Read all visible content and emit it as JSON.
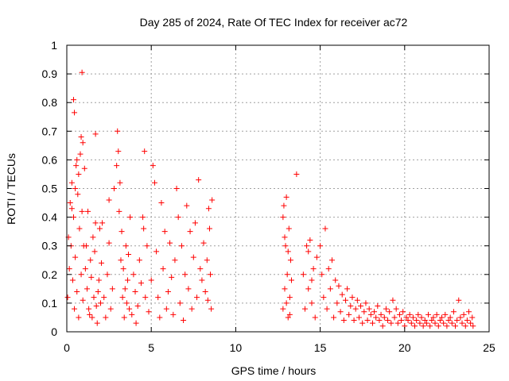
{
  "chart_data": {
    "type": "scatter",
    "title": "Day 285 of 2024, Rate Of TEC Index for receiver ac72",
    "xlabel": "GPS time / hours",
    "ylabel": "ROTI / TECUs",
    "xlim": [
      0,
      25
    ],
    "ylim": [
      0,
      1
    ],
    "xticks": [
      "0",
      "5",
      "10",
      "15",
      "20",
      "25"
    ],
    "yticks": [
      "0",
      "0.1",
      "0.2",
      "0.3",
      "0.4",
      "0.5",
      "0.6",
      "0.7",
      "0.8",
      "0.9",
      "1"
    ],
    "grid": true,
    "marker": "plus",
    "color": "#ff0000",
    "points": [
      [
        0.05,
        0.12
      ],
      [
        0.1,
        0.33
      ],
      [
        0.15,
        0.22
      ],
      [
        0.2,
        0.45
      ],
      [
        0.25,
        0.3
      ],
      [
        0.3,
        0.52
      ],
      [
        0.35,
        0.18
      ],
      [
        0.4,
        0.4
      ],
      [
        0.45,
        0.08
      ],
      [
        0.5,
        0.26
      ],
      [
        0.55,
        0.58
      ],
      [
        0.6,
        0.14
      ],
      [
        0.65,
        0.48
      ],
      [
        0.7,
        0.05
      ],
      [
        0.75,
        0.36
      ],
      [
        0.8,
        0.62
      ],
      [
        0.85,
        0.2
      ],
      [
        0.9,
        0.42
      ],
      [
        0.95,
        0.11
      ],
      [
        1.0,
        0.3
      ],
      [
        0.4,
        0.81
      ],
      [
        0.45,
        0.765
      ],
      [
        0.9,
        0.905
      ],
      [
        0.85,
        0.68
      ],
      [
        0.95,
        0.66
      ],
      [
        0.6,
        0.6
      ],
      [
        0.7,
        0.55
      ],
      [
        0.5,
        0.5
      ],
      [
        1.05,
        0.57
      ],
      [
        0.3,
        0.43
      ],
      [
        1.1,
        0.22
      ],
      [
        1.2,
        0.15
      ],
      [
        1.3,
        0.08
      ],
      [
        1.4,
        0.25
      ],
      [
        1.5,
        0.05
      ],
      [
        1.6,
        0.12
      ],
      [
        1.7,
        0.38
      ],
      [
        1.8,
        0.03
      ],
      [
        1.9,
        0.18
      ],
      [
        2.0,
        0.1
      ],
      [
        1.15,
        0.3
      ],
      [
        1.25,
        0.42
      ],
      [
        1.35,
        0.06
      ],
      [
        1.45,
        0.19
      ],
      [
        1.55,
        0.33
      ],
      [
        1.65,
        0.28
      ],
      [
        1.75,
        0.09
      ],
      [
        1.85,
        0.14
      ],
      [
        1.95,
        0.36
      ],
      [
        2.05,
        0.24
      ],
      [
        1.7,
        0.69
      ],
      [
        2.1,
        0.38
      ],
      [
        2.2,
        0.12
      ],
      [
        2.3,
        0.05
      ],
      [
        2.4,
        0.2
      ],
      [
        2.5,
        0.31
      ],
      [
        2.6,
        0.08
      ],
      [
        2.5,
        0.46
      ],
      [
        2.8,
        0.5
      ],
      [
        2.7,
        0.15
      ],
      [
        3.0,
        0.7
      ],
      [
        3.05,
        0.63
      ],
      [
        2.95,
        0.58
      ],
      [
        3.1,
        0.42
      ],
      [
        3.2,
        0.25
      ],
      [
        3.3,
        0.12
      ],
      [
        3.4,
        0.05
      ],
      [
        3.5,
        0.3
      ],
      [
        3.6,
        0.18
      ],
      [
        3.7,
        0.08
      ],
      [
        3.15,
        0.52
      ],
      [
        3.25,
        0.35
      ],
      [
        3.35,
        0.22
      ],
      [
        3.45,
        0.15
      ],
      [
        3.55,
        0.1
      ],
      [
        3.65,
        0.27
      ],
      [
        3.75,
        0.4
      ],
      [
        3.85,
        0.06
      ],
      [
        3.95,
        0.2
      ],
      [
        4.05,
        0.14
      ],
      [
        4.1,
        0.03
      ],
      [
        4.2,
        0.09
      ],
      [
        4.3,
        0.25
      ],
      [
        4.4,
        0.17
      ],
      [
        4.5,
        0.4
      ],
      [
        4.6,
        0.63
      ],
      [
        4.55,
        0.36
      ],
      [
        4.65,
        0.12
      ],
      [
        4.75,
        0.3
      ],
      [
        4.85,
        0.07
      ],
      [
        5.0,
        0.18
      ],
      [
        5.1,
        0.58
      ],
      [
        5.2,
        0.52
      ],
      [
        5.3,
        0.28
      ],
      [
        5.4,
        0.12
      ],
      [
        5.5,
        0.05
      ],
      [
        5.6,
        0.45
      ],
      [
        5.7,
        0.22
      ],
      [
        5.8,
        0.35
      ],
      [
        5.9,
        0.08
      ],
      [
        6.0,
        0.14
      ],
      [
        6.1,
        0.31
      ],
      [
        6.2,
        0.19
      ],
      [
        6.3,
        0.06
      ],
      [
        6.4,
        0.25
      ],
      [
        6.5,
        0.5
      ],
      [
        6.6,
        0.4
      ],
      [
        6.7,
        0.1
      ],
      [
        6.8,
        0.3
      ],
      [
        6.9,
        0.04
      ],
      [
        7.0,
        0.2
      ],
      [
        7.1,
        0.44
      ],
      [
        7.2,
        0.15
      ],
      [
        7.3,
        0.35
      ],
      [
        7.4,
        0.08
      ],
      [
        7.5,
        0.26
      ],
      [
        7.6,
        0.38
      ],
      [
        7.7,
        0.12
      ],
      [
        7.8,
        0.53
      ],
      [
        7.9,
        0.22
      ],
      [
        8.0,
        0.18
      ],
      [
        8.1,
        0.31
      ],
      [
        8.2,
        0.14
      ],
      [
        8.3,
        0.25
      ],
      [
        8.4,
        0.43
      ],
      [
        8.5,
        0.2
      ],
      [
        8.6,
        0.46
      ],
      [
        8.55,
        0.08
      ],
      [
        8.45,
        0.36
      ],
      [
        8.35,
        0.11
      ],
      [
        12.8,
        0.08
      ],
      [
        12.85,
        0.44
      ],
      [
        12.9,
        0.15
      ],
      [
        12.95,
        0.3
      ],
      [
        13.0,
        0.47
      ],
      [
        13.05,
        0.2
      ],
      [
        13.1,
        0.05
      ],
      [
        13.15,
        0.36
      ],
      [
        13.2,
        0.12
      ],
      [
        13.25,
        0.25
      ],
      [
        12.8,
        0.4
      ],
      [
        12.9,
        0.33
      ],
      [
        13.0,
        0.1
      ],
      [
        13.1,
        0.28
      ],
      [
        13.2,
        0.06
      ],
      [
        13.3,
        0.18
      ],
      [
        13.6,
        0.55
      ],
      [
        14.0,
        0.2
      ],
      [
        14.1,
        0.08
      ],
      [
        14.2,
        0.3
      ],
      [
        14.3,
        0.15
      ],
      [
        14.4,
        0.32
      ],
      [
        14.5,
        0.1
      ],
      [
        14.6,
        0.22
      ],
      [
        14.3,
        0.28
      ],
      [
        14.5,
        0.18
      ],
      [
        14.7,
        0.05
      ],
      [
        14.8,
        0.26
      ],
      [
        15.0,
        0.3
      ],
      [
        15.1,
        0.2
      ],
      [
        15.2,
        0.12
      ],
      [
        15.3,
        0.36
      ],
      [
        15.4,
        0.08
      ],
      [
        15.5,
        0.22
      ],
      [
        15.6,
        0.15
      ],
      [
        15.7,
        0.25
      ],
      [
        15.8,
        0.05
      ],
      [
        15.9,
        0.18
      ],
      [
        16.0,
        0.1
      ],
      [
        16.1,
        0.16
      ],
      [
        16.2,
        0.07
      ],
      [
        16.3,
        0.13
      ],
      [
        16.4,
        0.04
      ],
      [
        16.5,
        0.11
      ],
      [
        16.6,
        0.15
      ],
      [
        16.7,
        0.06
      ],
      [
        16.8,
        0.09
      ],
      [
        16.9,
        0.12
      ],
      [
        17.0,
        0.04
      ],
      [
        17.1,
        0.08
      ],
      [
        17.2,
        0.11
      ],
      [
        17.3,
        0.05
      ],
      [
        17.4,
        0.09
      ],
      [
        17.5,
        0.03
      ],
      [
        17.6,
        0.07
      ],
      [
        17.7,
        0.1
      ],
      [
        17.8,
        0.04
      ],
      [
        17.9,
        0.08
      ],
      [
        18.0,
        0.06
      ],
      [
        18.1,
        0.03
      ],
      [
        18.2,
        0.07
      ],
      [
        18.3,
        0.05
      ],
      [
        18.4,
        0.09
      ],
      [
        18.5,
        0.04
      ],
      [
        18.6,
        0.06
      ],
      [
        18.7,
        0.02
      ],
      [
        18.8,
        0.05
      ],
      [
        18.9,
        0.08
      ],
      [
        19.0,
        0.04
      ],
      [
        19.1,
        0.07
      ],
      [
        19.2,
        0.03
      ],
      [
        19.3,
        0.11
      ],
      [
        19.4,
        0.05
      ],
      [
        19.5,
        0.08
      ],
      [
        19.6,
        0.03
      ],
      [
        19.7,
        0.06
      ],
      [
        19.8,
        0.04
      ],
      [
        19.9,
        0.07
      ],
      [
        20.0,
        0.02
      ],
      [
        20.1,
        0.05
      ],
      [
        20.2,
        0.04
      ],
      [
        20.3,
        0.06
      ],
      [
        20.4,
        0.03
      ],
      [
        20.5,
        0.05
      ],
      [
        20.6,
        0.02
      ],
      [
        20.7,
        0.04
      ],
      [
        20.8,
        0.06
      ],
      [
        20.9,
        0.03
      ],
      [
        21.0,
        0.05
      ],
      [
        21.1,
        0.02
      ],
      [
        21.2,
        0.04
      ],
      [
        21.3,
        0.03
      ],
      [
        21.4,
        0.06
      ],
      [
        21.5,
        0.02
      ],
      [
        21.6,
        0.04
      ],
      [
        21.7,
        0.05
      ],
      [
        21.8,
        0.03
      ],
      [
        21.9,
        0.06
      ],
      [
        22.0,
        0.02
      ],
      [
        22.1,
        0.04
      ],
      [
        22.2,
        0.05
      ],
      [
        22.3,
        0.03
      ],
      [
        22.4,
        0.06
      ],
      [
        22.5,
        0.02
      ],
      [
        22.6,
        0.04
      ],
      [
        22.7,
        0.05
      ],
      [
        22.8,
        0.03
      ],
      [
        22.9,
        0.07
      ],
      [
        23.0,
        0.02
      ],
      [
        23.1,
        0.04
      ],
      [
        23.2,
        0.11
      ],
      [
        23.3,
        0.05
      ],
      [
        23.4,
        0.03
      ],
      [
        23.5,
        0.06
      ],
      [
        23.6,
        0.02
      ],
      [
        23.7,
        0.04
      ],
      [
        23.8,
        0.07
      ],
      [
        23.9,
        0.03
      ],
      [
        24.0,
        0.05
      ],
      [
        24.05,
        0.02
      ]
    ]
  }
}
